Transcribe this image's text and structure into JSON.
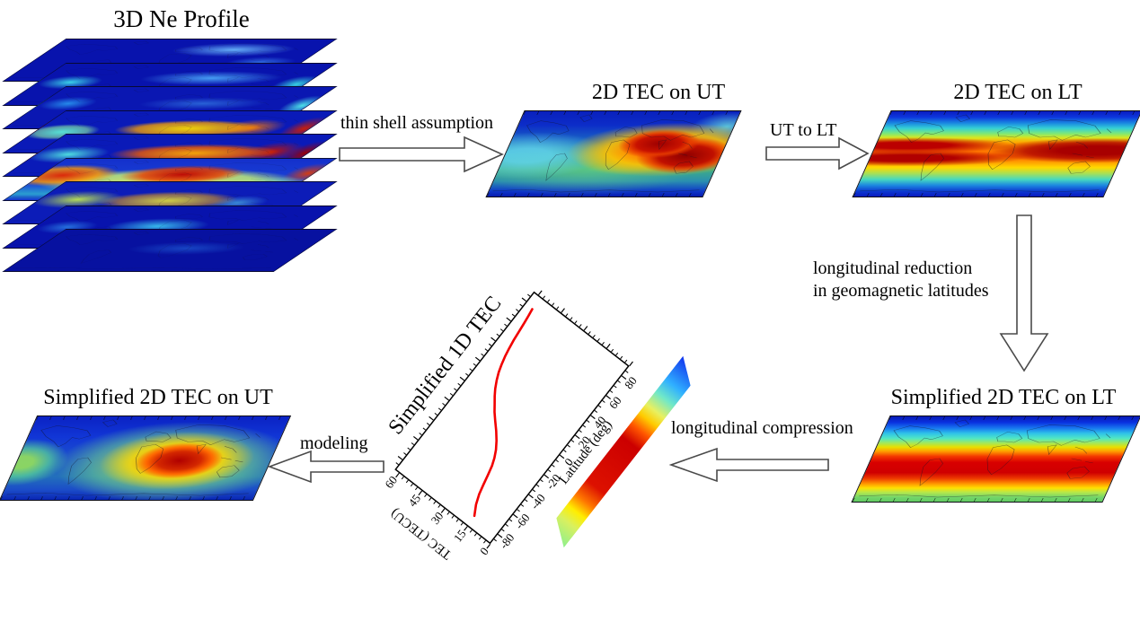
{
  "diagram": {
    "nodes": [
      {
        "id": "ne-3d",
        "title": "3D Ne Profile"
      },
      {
        "id": "tec-ut",
        "title": "2D TEC on UT"
      },
      {
        "id": "tec-lt",
        "title": "2D TEC on LT"
      },
      {
        "id": "simp-lt",
        "title": "Simplified 2D TEC  on LT"
      },
      {
        "id": "simp-1d",
        "title": "Simplified 1D TEC"
      },
      {
        "id": "simp-ut",
        "title": "Simplified 2D TEC on UT"
      }
    ],
    "arrows": [
      {
        "id": "thin-shell",
        "label": "thin shell assumption",
        "direction": "right"
      },
      {
        "id": "ut-to-lt",
        "label": "UT to LT",
        "direction": "right"
      },
      {
        "id": "long-reduction",
        "label_line1": "longitudinal reduction",
        "label_line2": "in geomagnetic latitudes",
        "direction": "down"
      },
      {
        "id": "long-compression",
        "label": "longitudinal compression",
        "direction": "left"
      },
      {
        "id": "modeling",
        "label": "modeling",
        "direction": "left"
      }
    ]
  },
  "ne_stack": {
    "layers": 9
  },
  "chart_data": {
    "type": "line",
    "title": "Simplified 1D TEC",
    "xlabel": "Latitude (deg)",
    "ylabel": "TEC (TECU)",
    "xlim": [
      -90,
      90
    ],
    "ylim": [
      0,
      63
    ],
    "x_ticks": [
      -80,
      -60,
      -40,
      -20,
      0,
      20,
      40,
      60,
      80
    ],
    "y_ticks": [
      0,
      15,
      30,
      45,
      60
    ],
    "x_minor_step": 5,
    "y_minor_step": 3,
    "rotation_deg": -52,
    "grid": false,
    "legend": "none",
    "series": [
      {
        "name": "simplified TEC latitude profile",
        "color": "#f20000",
        "x": [
          -80,
          -72,
          -64,
          -56,
          -48,
          -40,
          -34,
          -28,
          -22,
          -16,
          -10,
          -5,
          0,
          5,
          10,
          16,
          22,
          28,
          35,
          42,
          50,
          58,
          66,
          72,
          78
        ],
        "y": [
          15.5,
          18.5,
          20.5,
          21.8,
          23,
          24.3,
          25.8,
          27.8,
          30.5,
          33.8,
          37.5,
          40.5,
          43,
          45.5,
          47.7,
          49.8,
          51.5,
          52.8,
          54,
          54.9,
          55.7,
          56.3,
          56.9,
          57.4,
          58
        ]
      }
    ]
  },
  "colors": {
    "curve_red": "#f20000",
    "arrow_outline": "#4a4a4a",
    "text": "#000000",
    "map_frame": "#0d0d16",
    "colorbar_stops_south_to_north": [
      "#8ef08e",
      "#ffee00",
      "#cc0000",
      "#ffcc00",
      "#70e8c8",
      "#1133ee"
    ]
  }
}
